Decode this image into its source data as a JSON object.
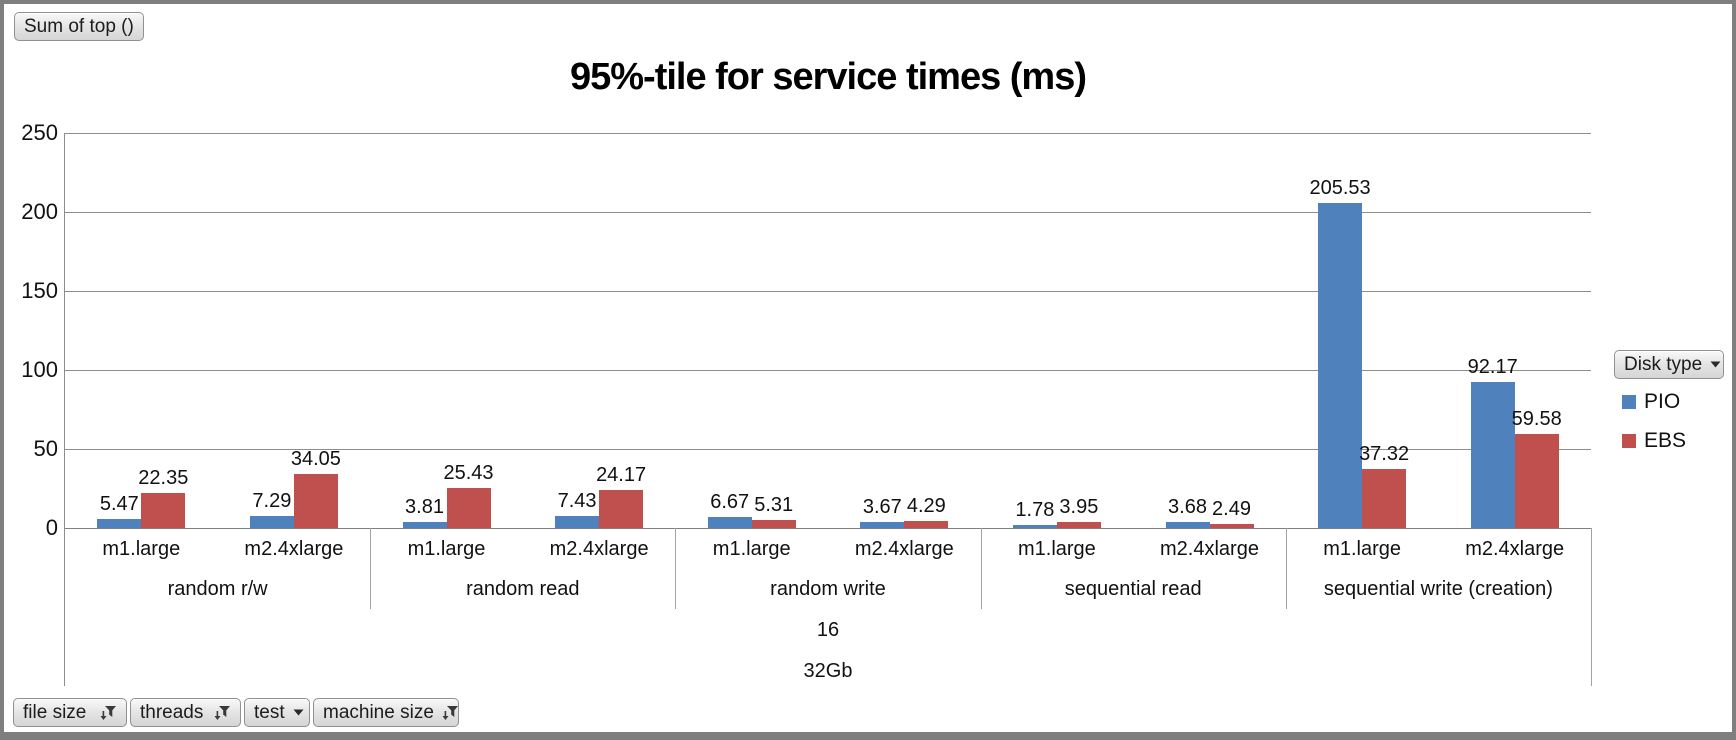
{
  "pivot": {
    "value_field_button": "Sum of top ()",
    "legend_field_button": "Disk type",
    "axis_field_buttons": [
      {
        "label": "file size",
        "icon": "filter"
      },
      {
        "label": "threads",
        "icon": "filter"
      },
      {
        "label": "test",
        "icon": "dropdown"
      },
      {
        "label": "machine size",
        "icon": "filter"
      }
    ]
  },
  "chart_data": {
    "type": "bar",
    "title": "95%-tile for service times (ms)",
    "xlabel": "",
    "ylabel": "",
    "ylim": [
      0,
      250
    ],
    "yticks": [
      0,
      50,
      100,
      150,
      200,
      250
    ],
    "grid": true,
    "legend_position": "right",
    "legend_field": "Disk type",
    "series": [
      {
        "name": "PIO",
        "color": "#4F81BD"
      },
      {
        "name": "EBS",
        "color": "#C0504D"
      }
    ],
    "groups": [
      {
        "label": "random r/w",
        "items": [
          {
            "label": "m1.large",
            "values": [
              5.47,
              22.35
            ]
          },
          {
            "label": "m2.4xlarge",
            "values": [
              7.29,
              34.05
            ]
          }
        ]
      },
      {
        "label": "random read",
        "items": [
          {
            "label": "m1.large",
            "values": [
              3.81,
              25.43
            ]
          },
          {
            "label": "m2.4xlarge",
            "values": [
              7.43,
              24.17
            ]
          }
        ]
      },
      {
        "label": "random write",
        "items": [
          {
            "label": "m1.large",
            "values": [
              6.67,
              5.31
            ]
          },
          {
            "label": "m2.4xlarge",
            "values": [
              3.67,
              4.29
            ]
          }
        ]
      },
      {
        "label": "sequential read",
        "items": [
          {
            "label": "m1.large",
            "values": [
              1.78,
              3.95
            ]
          },
          {
            "label": "m2.4xlarge",
            "values": [
              3.68,
              2.49
            ]
          }
        ]
      },
      {
        "label": "sequential write (creation)",
        "items": [
          {
            "label": "m1.large",
            "values": [
              205.53,
              37.32
            ]
          },
          {
            "label": "m2.4xlarge",
            "values": [
              92.17,
              59.58
            ]
          }
        ]
      }
    ],
    "outer_category_rows": [
      "16",
      "32Gb"
    ]
  }
}
